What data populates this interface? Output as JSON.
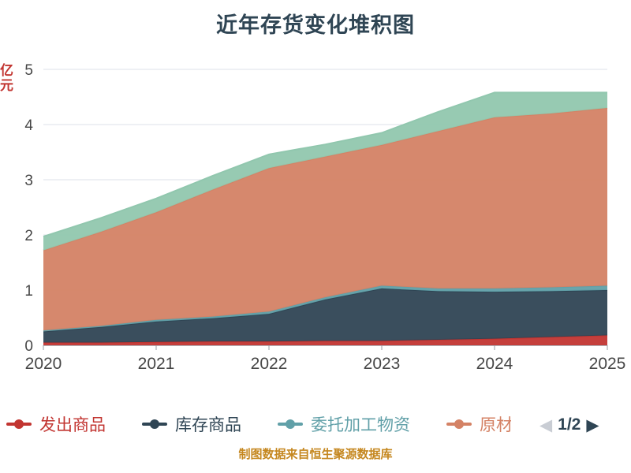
{
  "title": "近年存货变化堆积图",
  "y_axis_unit": "亿元",
  "footer": {
    "caption": "制图数据来自恒生聚源数据库"
  },
  "colors": {
    "title": "#2f4554",
    "footer_caption": "#c5871f",
    "y_axis_unit": "#c23531",
    "axis_label": "#464646",
    "gridline": "#dce1ea",
    "axis_line": "#999ea6",
    "background": "#ffffff"
  },
  "legend": {
    "items": [
      {
        "label": "发出商品",
        "color": "#c23531"
      },
      {
        "label": "库存商品",
        "color": "#2f4554"
      },
      {
        "label": "委托加工物资",
        "color": "#61a0a8"
      },
      {
        "label": "原材料",
        "color": "#d48265"
      }
    ],
    "pager": {
      "prev_icon": "◀",
      "page_text": "1/2",
      "next_icon": "▶",
      "prev_color": "#c9cdd4",
      "next_color": "#2f4554"
    }
  },
  "chart_data": {
    "type": "area",
    "stacked": true,
    "title": "近年存货变化堆积图",
    "x": [
      2020,
      2020.5,
      2021,
      2021.5,
      2022,
      2022.5,
      2023,
      2023.5,
      2024,
      2024.5,
      2025
    ],
    "x_tick_values": [
      2020,
      2021,
      2022,
      2023,
      2024,
      2025
    ],
    "x_tick_labels": [
      "2020",
      "2021",
      "2022",
      "2023",
      "2024",
      "2025"
    ],
    "ylim": [
      0,
      5
    ],
    "y_ticks": [
      0,
      1,
      2,
      3,
      4,
      5
    ],
    "grid": true,
    "legend_position": "bottom",
    "series": [
      {
        "name": "发出商品",
        "color": "#c23531",
        "values": [
          0.05,
          0.05,
          0.06,
          0.07,
          0.07,
          0.08,
          0.08,
          0.1,
          0.12,
          0.15,
          0.18
        ]
      },
      {
        "name": "库存商品",
        "color": "#2f4554",
        "values": [
          0.2,
          0.28,
          0.37,
          0.42,
          0.5,
          0.75,
          0.95,
          0.88,
          0.85,
          0.83,
          0.82
        ]
      },
      {
        "name": "委托加工物资",
        "color": "#61a0a8",
        "values": [
          0.02,
          0.02,
          0.03,
          0.03,
          0.04,
          0.04,
          0.05,
          0.05,
          0.06,
          0.07,
          0.08
        ]
      },
      {
        "name": "原材料",
        "color": "#d48265",
        "values": [
          1.45,
          1.7,
          1.95,
          2.3,
          2.6,
          2.55,
          2.55,
          2.85,
          3.1,
          3.15,
          3.22
        ]
      },
      {
        "name": "",
        "color": "#91c7ae",
        "values": [
          0.25,
          0.25,
          0.25,
          0.25,
          0.25,
          0.22,
          0.22,
          0.35,
          0.45,
          0.38,
          0.28
        ]
      }
    ]
  }
}
